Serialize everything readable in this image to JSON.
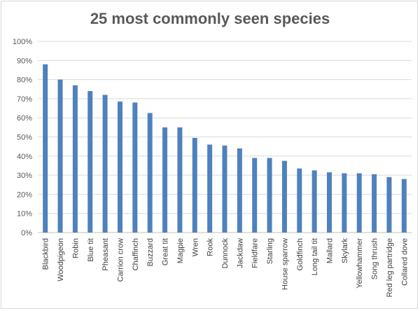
{
  "chart_data": {
    "type": "bar",
    "title": "25 most commonly seen species",
    "xlabel": "",
    "ylabel": "",
    "ylim": [
      0,
      100
    ],
    "y_unit": "%",
    "grid": true,
    "legend": "none",
    "bar_color": "#4f81bd",
    "categories": [
      "Blackbird",
      "Woodpigeon",
      "Robin",
      "Blue tit",
      "Pheasant",
      "Carrion crow",
      "Chaffinch",
      "Buzzard",
      "Great tit",
      "Magpie",
      "Wren",
      "Rook",
      "Dunnock",
      "Jackdaw",
      "Fieldfare",
      "Starling",
      "House sparrow",
      "Goldfinch",
      "Long tail tit",
      "Mallard",
      "Skylark",
      "Yellowhammer",
      "Song thrush",
      "Red leg partridge",
      "Collared dove"
    ],
    "values": [
      88,
      80,
      77,
      74,
      72,
      68.5,
      68,
      62.5,
      55,
      55,
      49.5,
      46,
      45.5,
      44,
      39,
      39,
      37.5,
      33.5,
      32.5,
      31.5,
      31,
      31,
      30.5,
      29,
      28
    ],
    "yticks": [
      "0%",
      "10%",
      "20%",
      "30%",
      "40%",
      "50%",
      "60%",
      "70%",
      "80%",
      "90%",
      "100%"
    ]
  }
}
